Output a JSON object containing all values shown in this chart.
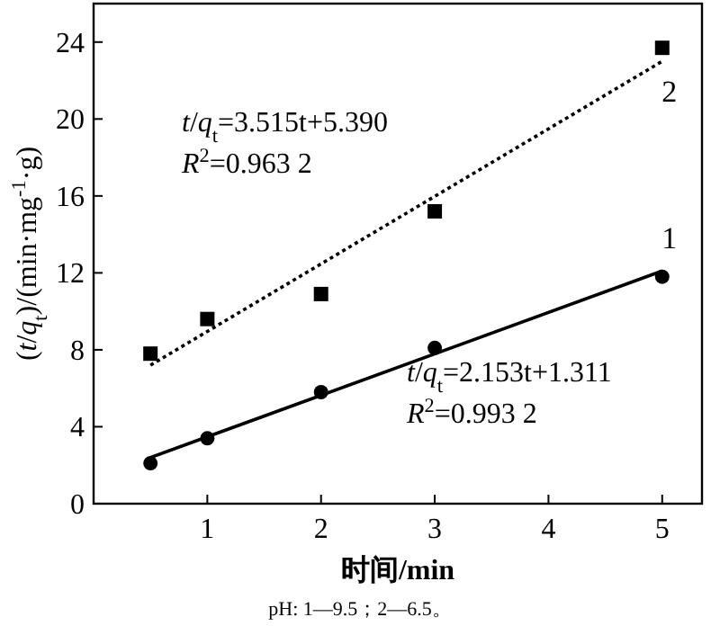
{
  "chart_data": {
    "type": "scatter",
    "xlabel": "时间/min",
    "ylabel": "(*t*/*q*$_{t}$)/(min·mg$^{-1}$·g)",
    "xlim": [
      0,
      5.35
    ],
    "ylim": [
      0,
      26
    ],
    "xticks": [
      1,
      2,
      3,
      4,
      5
    ],
    "yticks": [
      0,
      4,
      8,
      12,
      16,
      20,
      24
    ],
    "grid": false,
    "legend": false,
    "series": [
      {
        "name": "1",
        "type": "scatter",
        "marker": "circle",
        "color": "#000000",
        "x": [
          0.5,
          1,
          2,
          3,
          5
        ],
        "values": [
          2.1,
          3.4,
          5.8,
          8.1,
          11.8
        ]
      },
      {
        "name": "2",
        "type": "scatter",
        "marker": "square",
        "color": "#000000",
        "x": [
          0.5,
          1,
          2,
          3,
          5
        ],
        "values": [
          7.8,
          9.6,
          10.9,
          15.2,
          23.7
        ]
      },
      {
        "type": "line",
        "marker": "none",
        "line_style": "solid",
        "color": "#000000",
        "x": [
          0.5,
          5
        ],
        "values": [
          2.4,
          12.1
        ]
      },
      {
        "type": "line",
        "marker": "none",
        "line_style": "dotted",
        "color": "#000000",
        "x": [
          0.5,
          5
        ],
        "values": [
          7.2,
          23.0
        ]
      }
    ],
    "annotations": [
      "*t*/*q*$_{t}$=2.153t+1.311",
      "*R*$^{2}$=0.993 2",
      "*t*/*q*$_{t}$=3.515t+5.390",
      "*R*$^{2}$=0.963 2",
      "pH: 1—9.5；2—6.5。"
    ]
  }
}
